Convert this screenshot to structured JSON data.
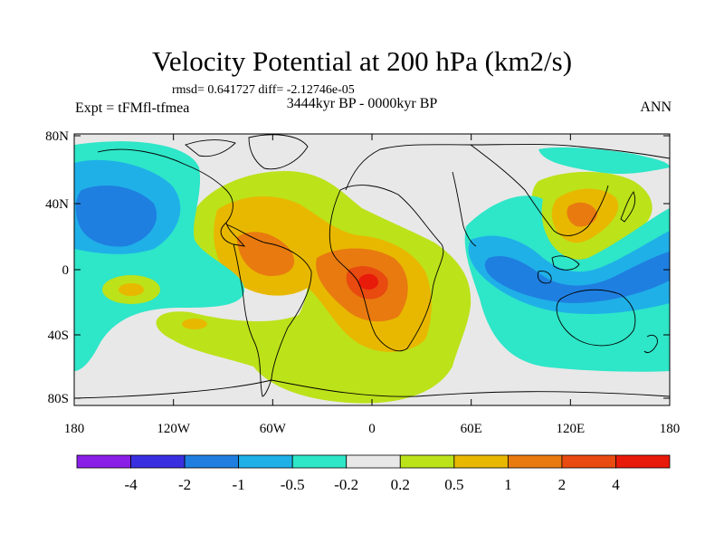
{
  "title": "Velocity Potential at 200 hPa (km2/s)",
  "stats": "rmsd= 0.641727 diff= -2.12746e-05",
  "experiment": "Expt = tFMfl-tfmea",
  "period": "3444kyr BP - 0000kyr BP",
  "season": "ANN",
  "map": {
    "longitude_ticks": [
      "180",
      "120W",
      "60W",
      "0",
      "60E",
      "120E",
      "180"
    ],
    "latitude_ticks": [
      "80N",
      "40N",
      "0",
      "40S",
      "80S"
    ]
  },
  "colorbar": {
    "levels": [
      "-4",
      "-2",
      "-1",
      "-0.5",
      "-0.2",
      "0.2",
      "0.5",
      "1",
      "2",
      "4"
    ],
    "colors": [
      "#8a1fe8",
      "#3a2fe0",
      "#1f7fe0",
      "#1fb0e8",
      "#2ee6c8",
      "#e8e8e8",
      "#bce21a",
      "#e8b800",
      "#e87a10",
      "#e84a10",
      "#e81a0a"
    ]
  }
}
